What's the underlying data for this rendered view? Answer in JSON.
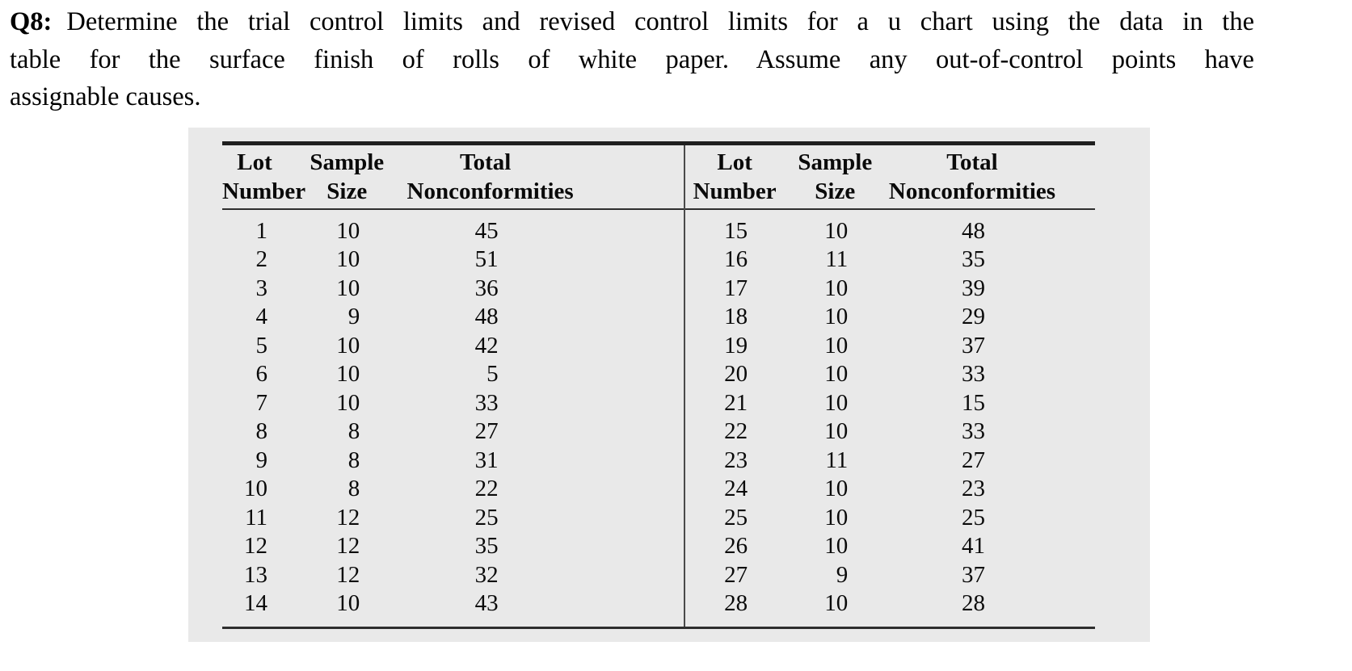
{
  "question": {
    "label": "Q8:",
    "lines": [
      "Determine the trial control limits and revised control limits for a u chart using the data in the",
      "table for the surface finish of rolls of white paper. Assume any out-of-control points have",
      "assignable causes."
    ]
  },
  "table": {
    "headers": [
      "Lot\nNumber",
      "Sample\nSize",
      "Total\nNonconformities"
    ],
    "left_rows": [
      [
        1,
        10,
        45
      ],
      [
        2,
        10,
        51
      ],
      [
        3,
        10,
        36
      ],
      [
        4,
        9,
        48
      ],
      [
        5,
        10,
        42
      ],
      [
        6,
        10,
        5
      ],
      [
        7,
        10,
        33
      ],
      [
        8,
        8,
        27
      ],
      [
        9,
        8,
        31
      ],
      [
        10,
        8,
        22
      ],
      [
        11,
        12,
        25
      ],
      [
        12,
        12,
        35
      ],
      [
        13,
        12,
        32
      ],
      [
        14,
        10,
        43
      ]
    ],
    "right_rows": [
      [
        15,
        10,
        48
      ],
      [
        16,
        11,
        35
      ],
      [
        17,
        10,
        39
      ],
      [
        18,
        10,
        29
      ],
      [
        19,
        10,
        37
      ],
      [
        20,
        10,
        33
      ],
      [
        21,
        10,
        15
      ],
      [
        22,
        10,
        33
      ],
      [
        23,
        11,
        27
      ],
      [
        24,
        10,
        23
      ],
      [
        25,
        10,
        25
      ],
      [
        26,
        10,
        41
      ],
      [
        27,
        9,
        37
      ],
      [
        28,
        10,
        28
      ]
    ]
  },
  "colors": {
    "panel_bg": "#e9e9e9",
    "rule_dark": "#1f1f1f",
    "rule_mid": "#2e2e2e",
    "text": "#0a0a0a"
  }
}
